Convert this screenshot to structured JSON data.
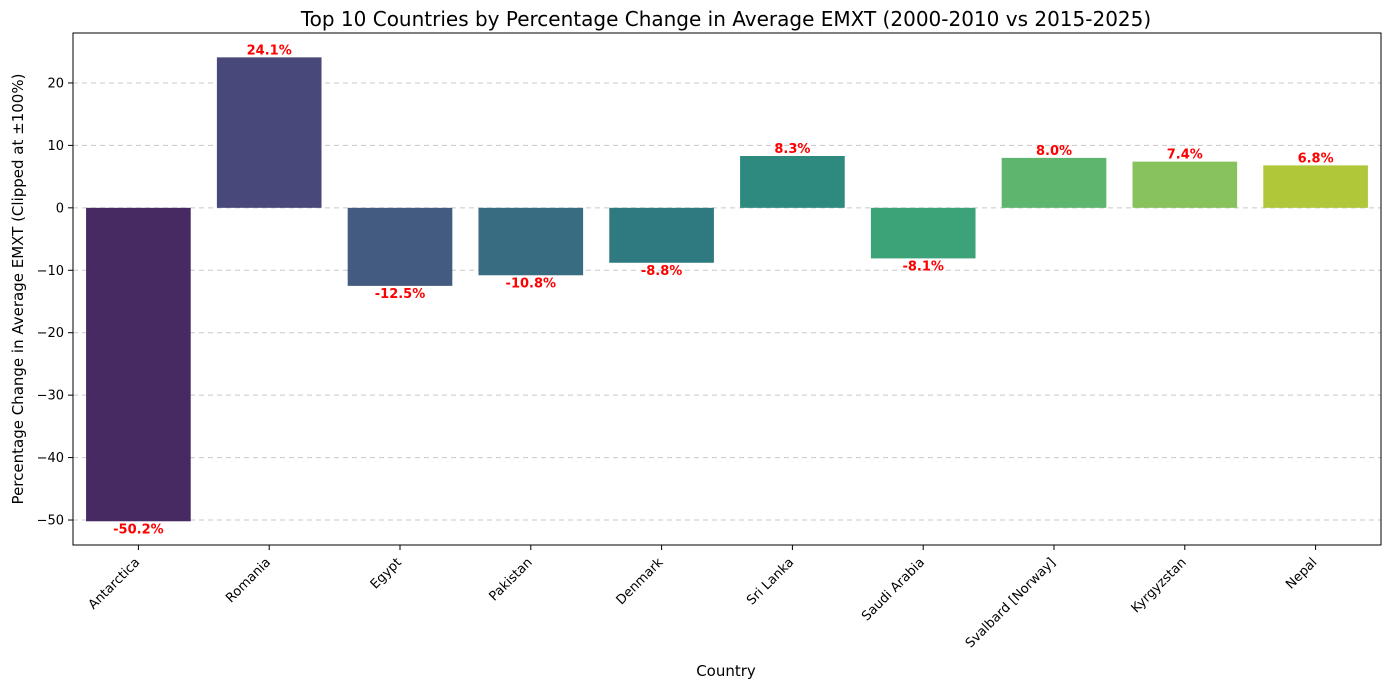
{
  "chart_data": {
    "type": "bar",
    "title": "Top 10 Countries by Percentage Change in Average EMXT (2000-2010 vs 2015-2025)",
    "xlabel": "Country",
    "ylabel": "Percentage Change in Average EMXT (Clipped at ±100%)",
    "categories": [
      "Antarctica",
      "Romania",
      "Egypt",
      "Pakistan",
      "Denmark",
      "Sri Lanka",
      "Saudi Arabia",
      "Svalbard [Norway]",
      "Kyrgyzstan",
      "Nepal"
    ],
    "values": [
      -50.2,
      24.1,
      -12.5,
      -10.8,
      -8.8,
      8.3,
      -8.1,
      8.0,
      7.4,
      6.8
    ],
    "data_labels": [
      "-50.2%",
      "24.1%",
      "-12.5%",
      "-10.8%",
      "-8.8%",
      "8.3%",
      "-8.1%",
      "8.0%",
      "7.4%",
      "6.8%"
    ],
    "bar_colors": [
      "#482a63",
      "#48487b",
      "#435b80",
      "#386c80",
      "#2f7a80",
      "#2e8a7e",
      "#3ca278",
      "#5eb56e",
      "#88c25c",
      "#b1c73a"
    ],
    "data_label_color": "#ff0000",
    "ylim": [
      -54,
      28
    ],
    "yticks": [
      -50,
      -40,
      -30,
      -20,
      -10,
      0,
      10,
      20
    ],
    "grid": "y-dashed",
    "legend": "none"
  }
}
